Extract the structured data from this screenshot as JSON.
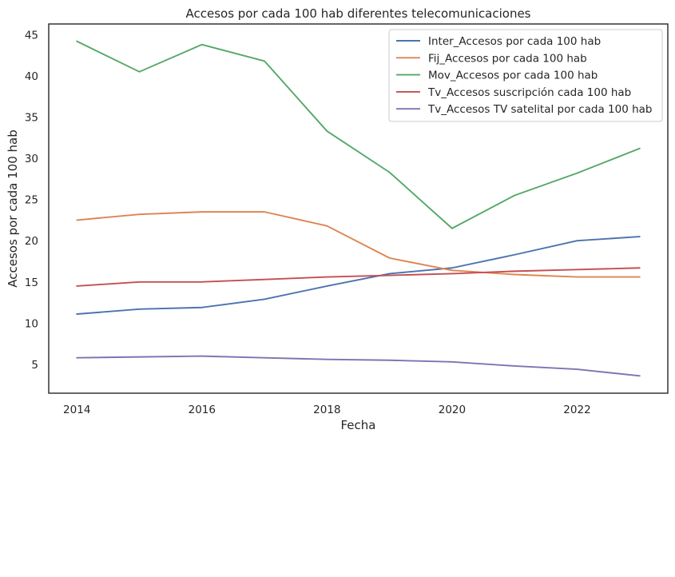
{
  "chart_data": {
    "type": "line",
    "title": "Accesos por cada 100 hab diferentes telecomunicaciones",
    "xlabel": "Fecha",
    "ylabel": "Accesos por cada 100 hab",
    "x": [
      2014,
      2015,
      2016,
      2017,
      2018,
      2019,
      2020,
      2021,
      2022,
      2023
    ],
    "xlim": [
      2013.55,
      2023.45
    ],
    "ylim": [
      1.5,
      46.3
    ],
    "xticks": [
      2014,
      2016,
      2018,
      2020,
      2022
    ],
    "yticks": [
      5,
      10,
      15,
      20,
      25,
      30,
      35,
      40,
      45
    ],
    "grid": false,
    "legend_position": "top-right",
    "series": [
      {
        "name": "Inter_Accesos por cada 100 hab",
        "color": "#4c72b0",
        "values": [
          11.1,
          11.7,
          11.9,
          12.9,
          14.5,
          16.0,
          16.7,
          18.3,
          20.0,
          20.5
        ]
      },
      {
        "name": "Fij_Accesos por cada 100 hab",
        "color": "#dd8452",
        "values": [
          22.5,
          23.2,
          23.5,
          23.5,
          21.8,
          17.9,
          16.4,
          15.9,
          15.6,
          15.6
        ]
      },
      {
        "name": "Mov_Accesos por cada 100 hab",
        "color": "#55a868",
        "values": [
          44.2,
          40.5,
          43.8,
          41.8,
          33.3,
          28.3,
          21.5,
          25.5,
          28.2,
          31.2
        ]
      },
      {
        "name": "Tv_Accesos suscripción cada 100 hab",
        "color": "#c44e52",
        "values": [
          14.5,
          15.0,
          15.0,
          15.3,
          15.6,
          15.8,
          16.0,
          16.3,
          16.5,
          16.7
        ]
      },
      {
        "name": "Tv_Accesos TV satelital por cada 100 hab",
        "color": "#8172b3",
        "values": [
          5.8,
          5.9,
          6.0,
          5.8,
          5.6,
          5.5,
          5.3,
          4.8,
          4.4,
          3.6
        ]
      }
    ]
  }
}
